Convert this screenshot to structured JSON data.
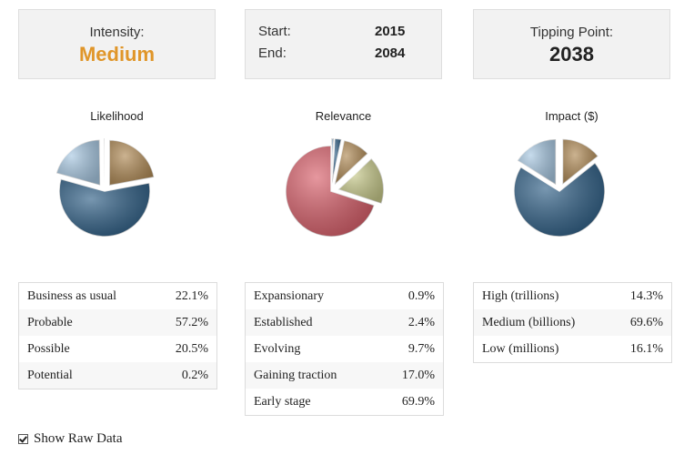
{
  "intensity": {
    "label": "Intensity:",
    "value": "Medium",
    "color": "#e0962a"
  },
  "timeframe": {
    "start_label": "Start:",
    "start_value": "2015",
    "end_label": "End:",
    "end_value": "2084"
  },
  "tipping_point": {
    "label": "Tipping Point:",
    "value": "2038"
  },
  "chart_data": [
    {
      "type": "pie",
      "title": "Likelihood",
      "categories": [
        "Business as usual",
        "Probable",
        "Possible",
        "Potential"
      ],
      "values": [
        22.1,
        57.2,
        20.5,
        0.2
      ],
      "colors": [
        "#b08a55",
        "#2f5f86",
        "#a9c9e3",
        "#e6e6e6"
      ],
      "exploded": [
        true,
        false,
        true,
        true
      ]
    },
    {
      "type": "pie",
      "title": "Relevance",
      "categories": [
        "Expansionary",
        "Established",
        "Evolving",
        "Gaining traction",
        "Early stage"
      ],
      "values": [
        0.9,
        2.4,
        9.7,
        17.0,
        69.9
      ],
      "colors": [
        "#a9c9e3",
        "#2f5f86",
        "#b08a55",
        "#c9cb8c",
        "#d9606b"
      ],
      "exploded": [
        true,
        true,
        true,
        true,
        false
      ]
    },
    {
      "type": "pie",
      "title": "Impact ($)",
      "categories": [
        "High (trillions)",
        "Medium (billions)",
        "Low (millions)"
      ],
      "values": [
        14.3,
        69.6,
        16.1
      ],
      "colors": [
        "#b08a55",
        "#2f5f86",
        "#a9c9e3"
      ],
      "exploded": [
        true,
        false,
        true
      ]
    }
  ],
  "tables": [
    {
      "rows": [
        {
          "label": "Business as usual",
          "value": "22.1%"
        },
        {
          "label": "Probable",
          "value": "57.2%"
        },
        {
          "label": "Possible",
          "value": "20.5%"
        },
        {
          "label": "Potential",
          "value": "0.2%"
        }
      ]
    },
    {
      "rows": [
        {
          "label": "Expansionary",
          "value": "0.9%"
        },
        {
          "label": "Established",
          "value": "2.4%"
        },
        {
          "label": "Evolving",
          "value": "9.7%"
        },
        {
          "label": "Gaining traction",
          "value": "17.0%"
        },
        {
          "label": "Early stage",
          "value": "69.9%"
        }
      ]
    },
    {
      "rows": [
        {
          "label": "High (trillions)",
          "value": "14.3%"
        },
        {
          "label": "Medium (billions)",
          "value": "69.6%"
        },
        {
          "label": "Low (millions)",
          "value": "16.1%"
        }
      ]
    }
  ],
  "footer": {
    "show_raw_label": "Show Raw Data",
    "checked": true
  }
}
